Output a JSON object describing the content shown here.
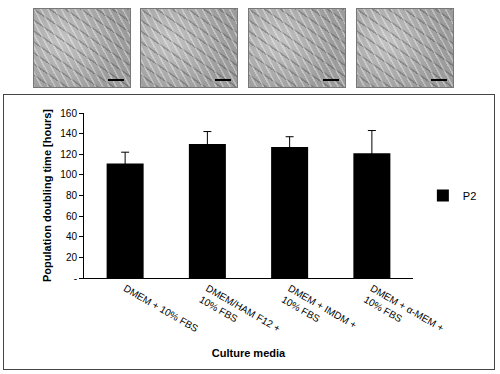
{
  "chart_data": {
    "type": "bar",
    "categories": [
      "DMEM + 10% FBS",
      "DMEM/HAM F12 + 10% FBS",
      "DMEM + IMDM + 10% FBS",
      "DMEM + α-MEM + 10% FBS"
    ],
    "series": [
      {
        "name": "P2",
        "color": "#000000",
        "values": [
          111,
          130,
          127,
          121
        ],
        "errors": [
          11,
          12,
          10,
          22
        ]
      }
    ],
    "x_label": "Culture media",
    "y_label": "Population doubling time [hours]",
    "ylim": [
      0,
      160
    ],
    "yticks": [
      {
        "value": 0,
        "label": "-"
      },
      20,
      40,
      60,
      80,
      100,
      120,
      140,
      160
    ],
    "grid": false,
    "legend": "right"
  }
}
